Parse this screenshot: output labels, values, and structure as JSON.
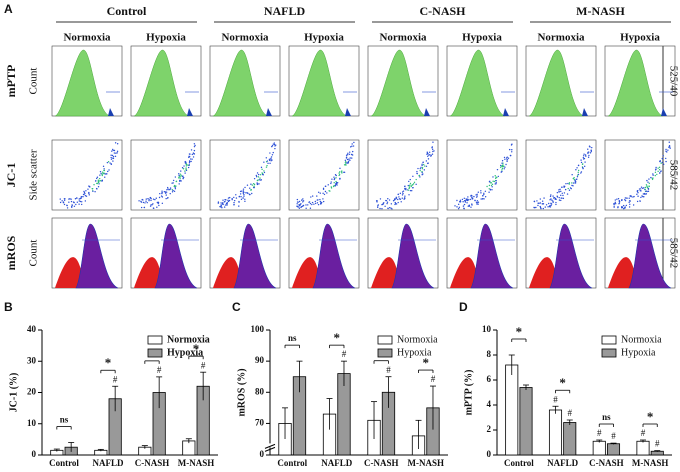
{
  "panel_a": {
    "label": "A",
    "groups": [
      "Control",
      "NAFLD",
      "C-NASH",
      "M-NASH"
    ],
    "conditions": [
      "Normoxia",
      "Hypoxia",
      "Normoxia",
      "Hypoxia",
      "Normoxia",
      "Hypoxia",
      "Normoxia",
      "Hypoxia"
    ],
    "rows": [
      "mPTP",
      "JC-1",
      "mROS"
    ],
    "y_axis_labels": [
      "Count",
      "Side scatter",
      "Count"
    ],
    "channels": [
      "525/40",
      "585/42",
      "585/42"
    ]
  },
  "chart_data": [
    {
      "type": "bar",
      "panel": "B",
      "y_label": "JC-1 (%)",
      "categories": [
        "Control",
        "NAFLD",
        "C-NASH",
        "M-NASH"
      ],
      "series": [
        {
          "name": "Normoxia",
          "color": "#ffffff",
          "values": [
            1.5,
            1.5,
            2.5,
            4.5
          ],
          "errors": [
            0.4,
            0.3,
            0.5,
            0.7
          ],
          "markers": [
            null,
            null,
            null,
            null
          ]
        },
        {
          "name": "Hypoxia",
          "color": "#999999",
          "values": [
            2.5,
            18,
            20,
            22
          ],
          "errors": [
            1.5,
            4,
            5,
            4.5
          ],
          "markers": [
            null,
            "#",
            "#",
            "#"
          ]
        }
      ],
      "significance": [
        "ns",
        "*",
        "*",
        "*"
      ],
      "ylim": [
        0,
        40
      ],
      "yticks": [
        0,
        10,
        20,
        30,
        40
      ],
      "legend_bold": true
    },
    {
      "type": "bar",
      "panel": "C",
      "y_label": "mROS (%)",
      "categories": [
        "Control",
        "NAFLD",
        "C-NASH",
        "M-NASH"
      ],
      "series": [
        {
          "name": "Normoxia",
          "color": "#ffffff",
          "values": [
            70,
            73,
            71,
            66
          ],
          "errors": [
            5,
            5,
            6,
            5
          ],
          "markers": [
            null,
            null,
            null,
            null
          ]
        },
        {
          "name": "Hypoxia",
          "color": "#999999",
          "values": [
            85,
            86,
            80,
            75
          ],
          "errors": [
            5,
            4,
            5,
            7
          ],
          "markers": [
            null,
            "#",
            "#",
            "#"
          ]
        }
      ],
      "significance": [
        "ns",
        "*",
        "*",
        "*"
      ],
      "ylim": [
        65,
        100
      ],
      "yticks": [
        0,
        70,
        80,
        90,
        100
      ],
      "axis_break": true,
      "legend_bold": false
    },
    {
      "type": "bar",
      "panel": "D",
      "y_label": "mPTP (%)",
      "categories": [
        "Control",
        "NAFLD",
        "C-NASH",
        "M-NASH"
      ],
      "series": [
        {
          "name": "Normoxia",
          "color": "#ffffff",
          "values": [
            7.2,
            3.6,
            1.1,
            1.1
          ],
          "errors": [
            0.8,
            0.3,
            0.1,
            0.1
          ],
          "markers": [
            null,
            "#",
            "#",
            "#"
          ]
        },
        {
          "name": "Hypoxia",
          "color": "#999999",
          "values": [
            5.4,
            2.6,
            0.9,
            0.3
          ],
          "errors": [
            0.2,
            0.2,
            0.05,
            0.05
          ],
          "markers": [
            null,
            "#",
            "#",
            "#"
          ]
        }
      ],
      "significance": [
        "*",
        "*",
        "ns",
        "*"
      ],
      "ylim": [
        0,
        10
      ],
      "yticks": [
        0,
        2,
        4,
        6,
        8,
        10
      ],
      "legend_bold": false
    }
  ]
}
